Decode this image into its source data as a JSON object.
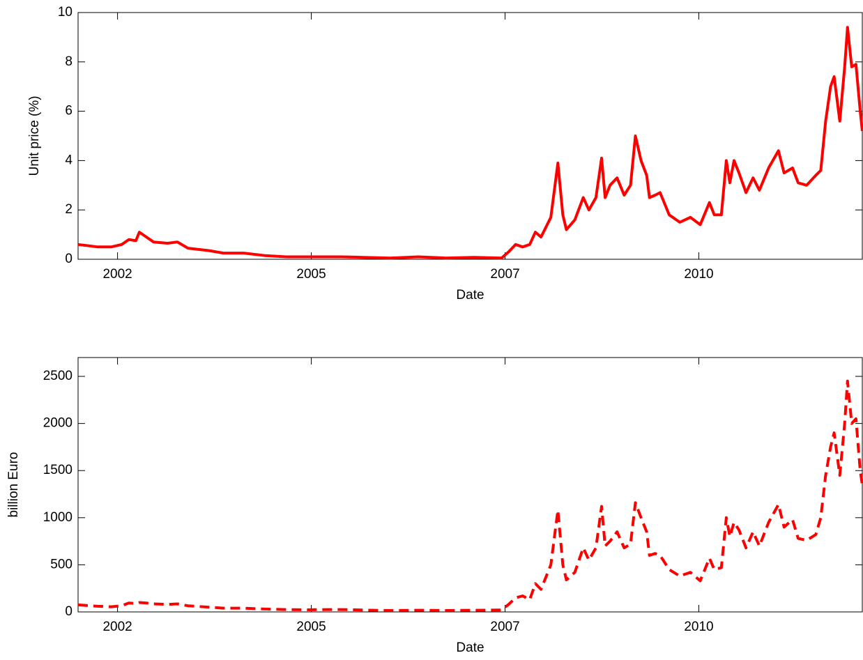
{
  "chart_data": [
    {
      "type": "line",
      "xlabel": "Date",
      "ylabel": "Unit price (%)",
      "color": "#ff0000",
      "line_style": "solid",
      "xlim": [
        2001.74,
        2012.87
      ],
      "xticks": [
        {
          "value": 2002.3,
          "label": "2002"
        },
        {
          "value": 2005.05,
          "label": "2005"
        },
        {
          "value": 2007.8,
          "label": "2007"
        },
        {
          "value": 2010.55,
          "label": "2010"
        }
      ],
      "ylim": [
        0,
        10
      ],
      "yticks": [
        0,
        2,
        4,
        6,
        8,
        10
      ],
      "x": [
        2001.74,
        2002.02,
        2002.21,
        2002.36,
        2002.46,
        2002.56,
        2002.61,
        2002.71,
        2002.81,
        2003.01,
        2003.15,
        2003.3,
        2003.6,
        2003.8,
        2004.09,
        2004.39,
        2004.69,
        2004.98,
        2005.28,
        2005.48,
        2005.78,
        2006.17,
        2006.57,
        2006.96,
        2007.36,
        2007.75,
        2007.85,
        2007.95,
        2008.05,
        2008.15,
        2008.23,
        2008.31,
        2008.45,
        2008.55,
        2008.62,
        2008.67,
        2008.79,
        2008.91,
        2008.99,
        2009.09,
        2009.17,
        2009.22,
        2009.29,
        2009.39,
        2009.49,
        2009.58,
        2009.65,
        2009.73,
        2009.81,
        2009.85,
        2009.93,
        2010.0,
        2010.13,
        2010.28,
        2010.43,
        2010.57,
        2010.7,
        2010.77,
        2010.87,
        2010.94,
        2010.99,
        2011.05,
        2011.12,
        2011.22,
        2011.32,
        2011.41,
        2011.54,
        2011.68,
        2011.76,
        2011.88,
        2011.96,
        2012.08,
        2012.21,
        2012.28,
        2012.35,
        2012.42,
        2012.47,
        2012.55,
        2012.62,
        2012.66,
        2012.72,
        2012.78,
        2012.84,
        2012.87
      ],
      "values": [
        0.6,
        0.5,
        0.5,
        0.6,
        0.8,
        0.75,
        1.1,
        0.9,
        0.7,
        0.65,
        0.7,
        0.45,
        0.35,
        0.25,
        0.25,
        0.15,
        0.1,
        0.1,
        0.1,
        0.1,
        0.08,
        0.05,
        0.1,
        0.05,
        0.08,
        0.05,
        0.3,
        0.6,
        0.5,
        0.6,
        1.1,
        0.9,
        1.7,
        3.9,
        1.8,
        1.2,
        1.6,
        2.5,
        2.0,
        2.5,
        4.1,
        2.5,
        3.0,
        3.3,
        2.6,
        3.0,
        5.0,
        4.0,
        3.4,
        2.5,
        2.6,
        2.7,
        1.8,
        1.5,
        1.7,
        1.4,
        2.3,
        1.8,
        1.8,
        4.0,
        3.1,
        4.0,
        3.5,
        2.7,
        3.3,
        2.8,
        3.7,
        4.4,
        3.5,
        3.7,
        3.1,
        3.0,
        3.4,
        3.6,
        5.6,
        7.0,
        7.4,
        5.6,
        7.8,
        9.4,
        7.8,
        7.9,
        6.0,
        5.2
      ]
    },
    {
      "type": "line",
      "xlabel": "Date",
      "ylabel": "billion Euro",
      "color": "#ff0000",
      "line_style": "dashed",
      "xlim": [
        2001.74,
        2012.87
      ],
      "xticks": [
        {
          "value": 2002.3,
          "label": "2002"
        },
        {
          "value": 2005.05,
          "label": "2005"
        },
        {
          "value": 2007.8,
          "label": "2007"
        },
        {
          "value": 2010.55,
          "label": "2010"
        }
      ],
      "ylim": [
        0,
        2700
      ],
      "yticks": [
        0,
        500,
        1000,
        1500,
        2000,
        2500
      ],
      "x": [
        2001.74,
        2002.02,
        2002.21,
        2002.36,
        2002.46,
        2002.56,
        2002.61,
        2002.71,
        2002.81,
        2003.01,
        2003.15,
        2003.3,
        2003.6,
        2003.8,
        2004.09,
        2004.39,
        2004.69,
        2004.98,
        2005.28,
        2005.48,
        2005.78,
        2006.17,
        2006.57,
        2006.96,
        2007.36,
        2007.75,
        2007.85,
        2007.95,
        2008.05,
        2008.15,
        2008.23,
        2008.31,
        2008.45,
        2008.55,
        2008.62,
        2008.67,
        2008.79,
        2008.91,
        2008.99,
        2009.09,
        2009.17,
        2009.22,
        2009.29,
        2009.39,
        2009.49,
        2009.58,
        2009.65,
        2009.73,
        2009.81,
        2009.85,
        2009.93,
        2010.0,
        2010.13,
        2010.28,
        2010.43,
        2010.57,
        2010.7,
        2010.77,
        2010.87,
        2010.94,
        2010.99,
        2011.05,
        2011.12,
        2011.22,
        2011.32,
        2011.41,
        2011.54,
        2011.68,
        2011.76,
        2011.88,
        2011.96,
        2012.08,
        2012.21,
        2012.28,
        2012.35,
        2012.42,
        2012.47,
        2012.55,
        2012.62,
        2012.66,
        2012.72,
        2012.78,
        2012.84,
        2012.87
      ],
      "values": [
        75,
        60,
        55,
        65,
        95,
        90,
        100,
        95,
        85,
        80,
        85,
        65,
        50,
        40,
        40,
        30,
        25,
        22,
        25,
        25,
        20,
        15,
        18,
        15,
        18,
        20,
        80,
        150,
        170,
        130,
        300,
        240,
        500,
        1080,
        500,
        340,
        420,
        680,
        550,
        680,
        1120,
        700,
        750,
        850,
        680,
        720,
        1160,
        1000,
        850,
        600,
        620,
        600,
        450,
        380,
        420,
        330,
        570,
        450,
        470,
        1000,
        800,
        950,
        870,
        680,
        850,
        700,
        950,
        1140,
        900,
        980,
        780,
        760,
        820,
        1000,
        1450,
        1750,
        1900,
        1450,
        2000,
        2450,
        2000,
        2050,
        1500,
        1350
      ]
    }
  ]
}
